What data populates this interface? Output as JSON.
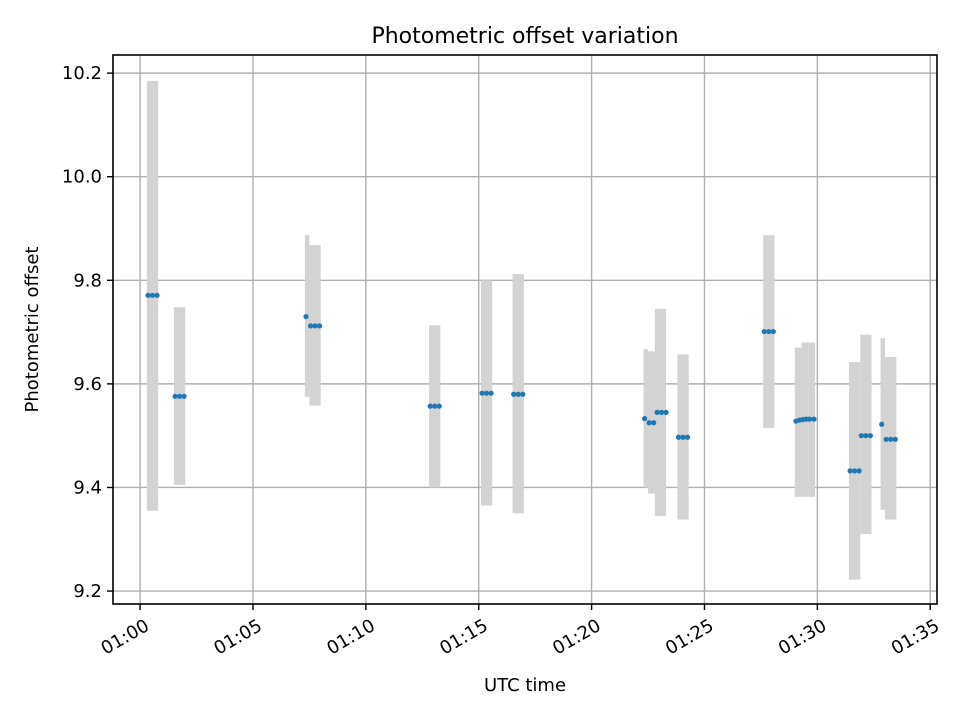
{
  "chart_data": {
    "type": "scatter",
    "title": "Photometric offset variation",
    "xlabel": "UTC time",
    "ylabel": "Photometric offset",
    "x_unit": "minutes after 01:00 UTC",
    "xlim": [
      -1.2,
      35.3
    ],
    "ylim": [
      9.175,
      10.235
    ],
    "grid": true,
    "x_ticks": [
      {
        "value": 0,
        "label": "01:00"
      },
      {
        "value": 5,
        "label": "01:05"
      },
      {
        "value": 10,
        "label": "01:10"
      },
      {
        "value": 15,
        "label": "01:15"
      },
      {
        "value": 20,
        "label": "01:20"
      },
      {
        "value": 25,
        "label": "01:25"
      },
      {
        "value": 30,
        "label": "01:30"
      },
      {
        "value": 35,
        "label": "01:35"
      }
    ],
    "y_ticks": [
      {
        "value": 9.2,
        "label": "9.2"
      },
      {
        "value": 9.4,
        "label": "9.4"
      },
      {
        "value": 9.6,
        "label": "9.6"
      },
      {
        "value": 9.8,
        "label": "9.8"
      },
      {
        "value": 10.0,
        "label": "10.0"
      },
      {
        "value": 10.2,
        "label": "10.2"
      }
    ],
    "colors": {
      "points": "#1f77b4",
      "ranges": "#d3d3d3",
      "grid": "#b0b0b0"
    },
    "ranges": [
      {
        "x0": 0.3,
        "x1": 0.8,
        "low": 9.355,
        "high": 10.185
      },
      {
        "x0": 1.5,
        "x1": 2.0,
        "low": 9.405,
        "high": 9.748
      },
      {
        "x0": 7.3,
        "x1": 7.5,
        "low": 9.575,
        "high": 9.887
      },
      {
        "x0": 7.5,
        "x1": 8.0,
        "low": 9.558,
        "high": 9.868
      },
      {
        "x0": 12.8,
        "x1": 13.3,
        "low": 9.4,
        "high": 9.713
      },
      {
        "x0": 15.1,
        "x1": 15.6,
        "low": 9.365,
        "high": 9.8
      },
      {
        "x0": 16.5,
        "x1": 17.0,
        "low": 9.35,
        "high": 9.812
      },
      {
        "x0": 22.3,
        "x1": 22.5,
        "low": 9.4,
        "high": 9.667
      },
      {
        "x0": 22.5,
        "x1": 22.8,
        "low": 9.388,
        "high": 9.663
      },
      {
        "x0": 22.8,
        "x1": 23.3,
        "low": 9.345,
        "high": 9.745
      },
      {
        "x0": 23.8,
        "x1": 24.3,
        "low": 9.338,
        "high": 9.657
      },
      {
        "x0": 27.6,
        "x1": 28.1,
        "low": 9.515,
        "high": 9.887
      },
      {
        "x0": 29.0,
        "x1": 29.3,
        "low": 9.382,
        "high": 9.67
      },
      {
        "x0": 29.3,
        "x1": 29.6,
        "low": 9.382,
        "high": 9.68
      },
      {
        "x0": 29.6,
        "x1": 29.9,
        "low": 9.382,
        "high": 9.68
      },
      {
        "x0": 31.4,
        "x1": 31.9,
        "low": 9.222,
        "high": 9.642
      },
      {
        "x0": 31.9,
        "x1": 32.4,
        "low": 9.31,
        "high": 9.695
      },
      {
        "x0": 32.8,
        "x1": 33.0,
        "low": 9.357,
        "high": 9.688
      },
      {
        "x0": 33.0,
        "x1": 33.5,
        "low": 9.338,
        "high": 9.652
      }
    ],
    "points": [
      {
        "x": 0.35,
        "y": 9.771
      },
      {
        "x": 0.55,
        "y": 9.771
      },
      {
        "x": 0.75,
        "y": 9.771
      },
      {
        "x": 1.55,
        "y": 9.576
      },
      {
        "x": 1.75,
        "y": 9.576
      },
      {
        "x": 1.95,
        "y": 9.576
      },
      {
        "x": 7.35,
        "y": 9.73
      },
      {
        "x": 7.55,
        "y": 9.712
      },
      {
        "x": 7.75,
        "y": 9.712
      },
      {
        "x": 7.95,
        "y": 9.712
      },
      {
        "x": 12.85,
        "y": 9.557
      },
      {
        "x": 13.05,
        "y": 9.557
      },
      {
        "x": 13.25,
        "y": 9.557
      },
      {
        "x": 15.15,
        "y": 9.582
      },
      {
        "x": 15.35,
        "y": 9.582
      },
      {
        "x": 15.55,
        "y": 9.582
      },
      {
        "x": 16.55,
        "y": 9.58
      },
      {
        "x": 16.75,
        "y": 9.58
      },
      {
        "x": 16.95,
        "y": 9.58
      },
      {
        "x": 22.35,
        "y": 9.533
      },
      {
        "x": 22.55,
        "y": 9.525
      },
      {
        "x": 22.75,
        "y": 9.525
      },
      {
        "x": 22.9,
        "y": 9.545
      },
      {
        "x": 23.1,
        "y": 9.545
      },
      {
        "x": 23.3,
        "y": 9.545
      },
      {
        "x": 23.85,
        "y": 9.497
      },
      {
        "x": 24.05,
        "y": 9.497
      },
      {
        "x": 24.25,
        "y": 9.497
      },
      {
        "x": 27.65,
        "y": 9.701
      },
      {
        "x": 27.85,
        "y": 9.701
      },
      {
        "x": 28.05,
        "y": 9.701
      },
      {
        "x": 29.05,
        "y": 9.528
      },
      {
        "x": 29.2,
        "y": 9.53
      },
      {
        "x": 29.35,
        "y": 9.531
      },
      {
        "x": 29.5,
        "y": 9.532
      },
      {
        "x": 29.65,
        "y": 9.532
      },
      {
        "x": 29.85,
        "y": 9.532
      },
      {
        "x": 31.45,
        "y": 9.432
      },
      {
        "x": 31.65,
        "y": 9.432
      },
      {
        "x": 31.85,
        "y": 9.432
      },
      {
        "x": 31.95,
        "y": 9.5
      },
      {
        "x": 32.15,
        "y": 9.5
      },
      {
        "x": 32.35,
        "y": 9.5
      },
      {
        "x": 32.85,
        "y": 9.522
      },
      {
        "x": 33.05,
        "y": 9.493
      },
      {
        "x": 33.25,
        "y": 9.493
      },
      {
        "x": 33.45,
        "y": 9.493
      }
    ]
  }
}
